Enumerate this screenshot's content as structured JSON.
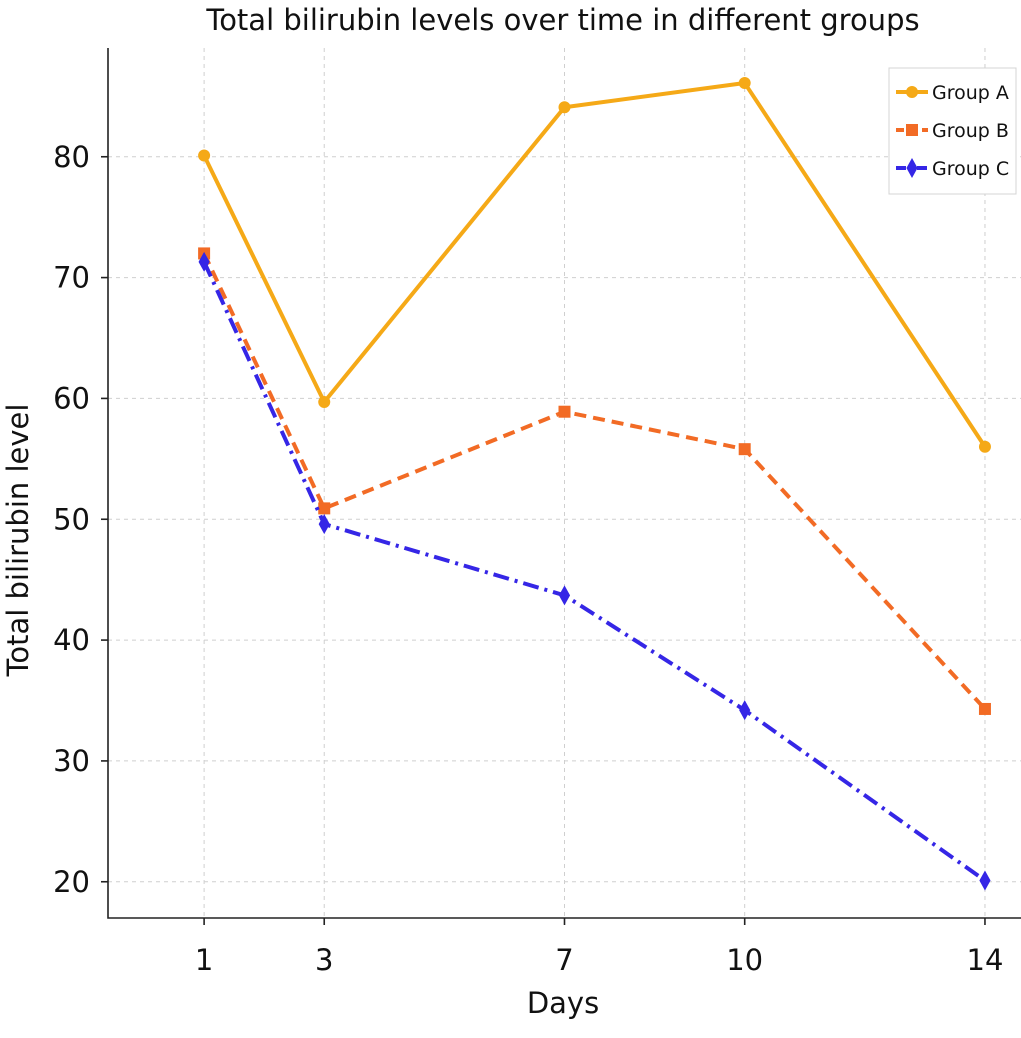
{
  "chart_data": {
    "type": "line",
    "title": "Total bilirubin levels over time in different groups",
    "xlabel": "Days",
    "ylabel": "Total bilirubin level",
    "x": [
      1,
      3,
      7,
      10,
      14
    ],
    "x_tick_labels": [
      "1",
      "3",
      "7",
      "10",
      "14"
    ],
    "y_ticks": [
      20,
      30,
      40,
      50,
      60,
      70,
      80
    ],
    "y_tick_labels": [
      "20",
      "30",
      "40",
      "50",
      "60",
      "70",
      "80"
    ],
    "xlim": [
      -0.6,
      14.6
    ],
    "ylim": [
      17,
      89
    ],
    "grid": true,
    "legend_position": "top-right",
    "series": [
      {
        "name": "Group A",
        "values": [
          80.1,
          59.7,
          84.1,
          86.1,
          56.0
        ],
        "color": "#F5A917",
        "line_style": "solid",
        "marker": "circle"
      },
      {
        "name": "Group B",
        "values": [
          72.0,
          50.9,
          58.9,
          55.8,
          34.3
        ],
        "color": "#F26B25",
        "line_style": "dashed",
        "marker": "square"
      },
      {
        "name": "Group C",
        "values": [
          71.3,
          49.6,
          43.7,
          34.2,
          20.1
        ],
        "color": "#3526E6",
        "line_style": "dash-dot",
        "marker": "diamond"
      }
    ]
  }
}
